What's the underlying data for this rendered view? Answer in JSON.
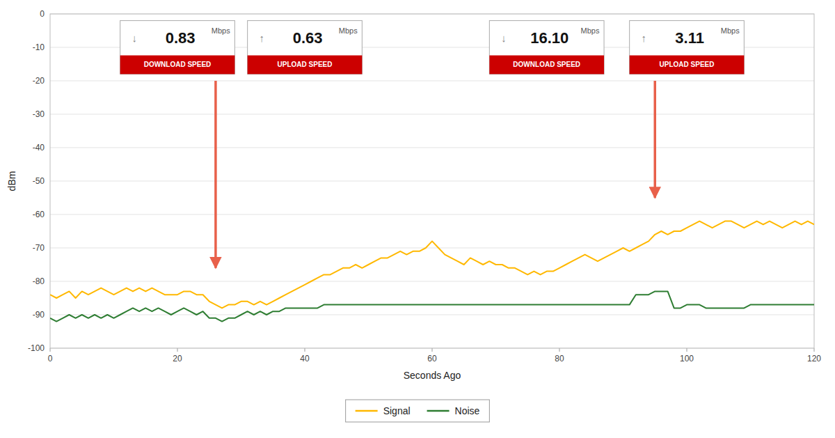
{
  "chart_data": {
    "type": "line",
    "xlabel": "Seconds Ago",
    "ylabel": "dBm",
    "xlim": [
      0,
      120
    ],
    "ylim": [
      -100,
      0
    ],
    "xticks": [
      0,
      20,
      40,
      60,
      80,
      100,
      120
    ],
    "yticks": [
      0,
      -10,
      -20,
      -30,
      -40,
      -50,
      -60,
      -70,
      -80,
      -90,
      -100
    ],
    "grid": true,
    "legend": "bottom",
    "x": [
      0,
      1,
      2,
      3,
      4,
      5,
      6,
      7,
      8,
      9,
      10,
      11,
      12,
      13,
      14,
      15,
      16,
      17,
      18,
      19,
      20,
      21,
      22,
      23,
      24,
      25,
      26,
      27,
      28,
      29,
      30,
      31,
      32,
      33,
      34,
      35,
      36,
      37,
      38,
      39,
      40,
      41,
      42,
      43,
      44,
      45,
      46,
      47,
      48,
      49,
      50,
      51,
      52,
      53,
      54,
      55,
      56,
      57,
      58,
      59,
      60,
      61,
      62,
      63,
      64,
      65,
      66,
      67,
      68,
      69,
      70,
      71,
      72,
      73,
      74,
      75,
      76,
      77,
      78,
      79,
      80,
      81,
      82,
      83,
      84,
      85,
      86,
      87,
      88,
      89,
      90,
      91,
      92,
      93,
      94,
      95,
      96,
      97,
      98,
      99,
      100,
      101,
      102,
      103,
      104,
      105,
      106,
      107,
      108,
      109,
      110,
      111,
      112,
      113,
      114,
      115,
      116,
      117,
      118,
      119,
      120
    ],
    "series": [
      {
        "name": "Signal",
        "color": "#FFB800",
        "values": [
          -84,
          -85,
          -84,
          -83,
          -85,
          -83,
          -84,
          -83,
          -82,
          -83,
          -84,
          -83,
          -82,
          -83,
          -82,
          -83,
          -82,
          -83,
          -84,
          -84,
          -84,
          -83,
          -83,
          -84,
          -84,
          -86,
          -87,
          -88,
          -87,
          -87,
          -86,
          -86,
          -87,
          -86,
          -87,
          -86,
          -85,
          -84,
          -83,
          -82,
          -81,
          -80,
          -79,
          -78,
          -78,
          -77,
          -76,
          -76,
          -75,
          -76,
          -75,
          -74,
          -73,
          -73,
          -72,
          -71,
          -72,
          -71,
          -71,
          -70,
          -68,
          -70,
          -72,
          -73,
          -74,
          -75,
          -73,
          -74,
          -75,
          -74,
          -75,
          -75,
          -76,
          -76,
          -77,
          -78,
          -77,
          -78,
          -77,
          -77,
          -76,
          -75,
          -74,
          -73,
          -72,
          -73,
          -74,
          -73,
          -72,
          -71,
          -70,
          -71,
          -70,
          -69,
          -68,
          -66,
          -65,
          -66,
          -65,
          -65,
          -64,
          -63,
          -62,
          -63,
          -64,
          -63,
          -62,
          -62,
          -63,
          -64,
          -63,
          -62,
          -63,
          -62,
          -63,
          -64,
          -63,
          -62,
          -63,
          -62,
          -63
        ]
      },
      {
        "name": "Noise",
        "color": "#2E7D32",
        "values": [
          -91,
          -92,
          -91,
          -90,
          -91,
          -90,
          -91,
          -90,
          -91,
          -90,
          -91,
          -90,
          -89,
          -88,
          -89,
          -88,
          -89,
          -88,
          -89,
          -90,
          -89,
          -88,
          -89,
          -90,
          -89,
          -91,
          -91,
          -92,
          -91,
          -91,
          -90,
          -89,
          -90,
          -89,
          -90,
          -89,
          -89,
          -88,
          -88,
          -88,
          -88,
          -88,
          -88,
          -87,
          -87,
          -87,
          -87,
          -87,
          -87,
          -87,
          -87,
          -87,
          -87,
          -87,
          -87,
          -87,
          -87,
          -87,
          -87,
          -87,
          -87,
          -87,
          -87,
          -87,
          -87,
          -87,
          -87,
          -87,
          -87,
          -87,
          -87,
          -87,
          -87,
          -87,
          -87,
          -87,
          -87,
          -87,
          -87,
          -87,
          -87,
          -87,
          -87,
          -87,
          -87,
          -87,
          -87,
          -87,
          -87,
          -87,
          -87,
          -87,
          -84,
          -84,
          -84,
          -83,
          -83,
          -83,
          -88,
          -88,
          -87,
          -87,
          -87,
          -88,
          -88,
          -88,
          -88,
          -88,
          -88,
          -88,
          -87,
          -87,
          -87,
          -87,
          -87,
          -87,
          -87,
          -87,
          -87,
          -87,
          -87
        ]
      }
    ],
    "annotations": [
      {
        "type": "arrow",
        "x": 26,
        "y_start": -20,
        "y_end": -76,
        "color": "#E8604A"
      },
      {
        "type": "arrow",
        "x": 95,
        "y_start": -20,
        "y_end": -55,
        "color": "#E8604A"
      },
      {
        "type": "speed_box",
        "x": 20,
        "y_top": -2,
        "y_bottom": -18,
        "value": "0.83",
        "unit": "Mbps",
        "label": "DOWNLOAD SPEED",
        "symbol": "↓"
      },
      {
        "type": "speed_box",
        "x": 40,
        "y_top": -2,
        "y_bottom": -18,
        "value": "0.63",
        "unit": "Mbps",
        "label": "UPLOAD SPEED",
        "symbol": "↑"
      },
      {
        "type": "speed_box",
        "x": 78,
        "y_top": -2,
        "y_bottom": -18,
        "value": "16.10",
        "unit": "Mbps",
        "label": "DOWNLOAD SPEED",
        "symbol": "↓"
      },
      {
        "type": "speed_box",
        "x": 100,
        "y_top": -2,
        "y_bottom": -18,
        "value": "3.11",
        "unit": "Mbps",
        "label": "UPLOAD SPEED",
        "symbol": "↑"
      }
    ]
  }
}
